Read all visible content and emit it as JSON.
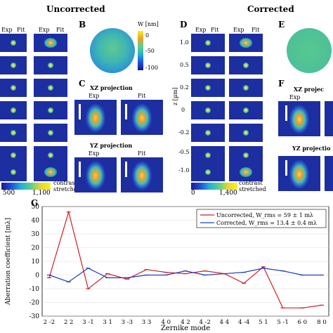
{
  "headings": {
    "uncorrected": "Uncorrected",
    "corrected": "Corrected"
  },
  "panel_letters": {
    "B": "B",
    "C": "C",
    "D": "D",
    "E": "E",
    "F": "F",
    "G": "G"
  },
  "col_labels": {
    "exp": "Exp",
    "fit": "Fit"
  },
  "z_axis": {
    "label": "z [µm]",
    "ticks": [
      "1.0",
      "0.5",
      "0.2",
      "0",
      "-0.2",
      "-0.5",
      "-1.0"
    ]
  },
  "wavefront_colorbar": {
    "title": "W [nm]",
    "ticks": [
      "0",
      "-50",
      "-100"
    ]
  },
  "projections": {
    "xz": "XZ projection",
    "yz": "YZ projection",
    "xz_cut": "XZ projec",
    "yz_cut": "YZ projectio"
  },
  "colorbar_left": {
    "min": "500",
    "max": "1,100",
    "note1": "contrast",
    "note2": "stretched"
  },
  "colorbar_right": {
    "min": "0",
    "max": "1,400",
    "note1": "contrast",
    "note2": "stretched"
  },
  "colors": {
    "uncorrected": "#d11f2a",
    "corrected": "#1f3fbf"
  },
  "chart_data": {
    "type": "line",
    "title": "",
    "xlabel": "Zernike mode",
    "ylabel": "Aberration coefficient [mλ]",
    "ylim": [
      -30,
      50
    ],
    "yticks": [
      -30,
      -20,
      -10,
      0,
      10,
      20,
      30,
      40,
      50
    ],
    "categories": [
      "2 -2",
      "2 2",
      "3 -1",
      "3 1",
      "3 -3",
      "3 3",
      "4 0",
      "4 2",
      "4 -2",
      "4 4",
      "4 -4",
      "5 1",
      "5 -1",
      "6 0",
      "8 0"
    ],
    "legend_position": "top-right",
    "series": [
      {
        "name": "Uncorrected, W_rms = 59 ± 1 mλ",
        "color": "#d11f2a",
        "values": [
          -2,
          46,
          -10,
          1,
          -3,
          4,
          2,
          1,
          3,
          1,
          -6,
          6,
          -24,
          -24,
          -22
        ]
      },
      {
        "name": "Corrected, W_rms = 13.4 ± 0.4 mλ",
        "color": "#1f3fbf",
        "values": [
          0,
          -5,
          5,
          -2,
          -2,
          0,
          0,
          3,
          0,
          1,
          2,
          5,
          3,
          0,
          0
        ]
      }
    ]
  }
}
